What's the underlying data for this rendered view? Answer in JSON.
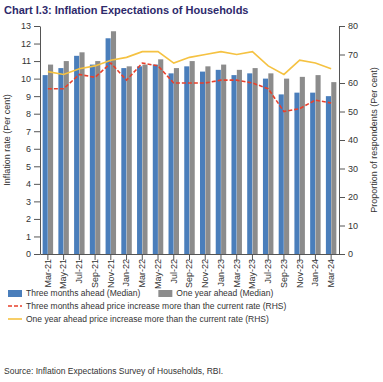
{
  "chart_data": {
    "type": "bar",
    "title": "Chart I.3: Inflation Expectations of Households",
    "source": "Source: Inflation Expectations Survey of Households, RBI.",
    "y_label": "Inflation rate (Per cent)",
    "y2_label": "Proportion of respondents (Per cent)",
    "categories": [
      "Mar-21",
      "May-21",
      "Jul-21",
      "Sep-21",
      "Nov-21",
      "Jan-22",
      "Mar-22",
      "May-22",
      "Jul-22",
      "Sep-22",
      "Nov-22",
      "Jan-23",
      "Mar-23",
      "May-23",
      "Jul-23",
      "Sep-23",
      "Nov-23",
      "Jan-24",
      "Mar-24"
    ],
    "series": [
      {
        "name": "Three months ahead (Median)",
        "type": "bar",
        "color": "#4a7ebb",
        "values": [
          10.2,
          10.6,
          11.3,
          10.8,
          12.3,
          10.6,
          10.7,
          10.8,
          10.3,
          10.7,
          10.4,
          10.5,
          10.2,
          10.3,
          10.0,
          9.1,
          9.2,
          9.2,
          9.0
        ]
      },
      {
        "name": "One year ahead (Median)",
        "type": "bar",
        "color": "#8c8c8c",
        "values": [
          10.8,
          11.0,
          11.5,
          11.0,
          12.7,
          10.7,
          10.8,
          11.1,
          10.6,
          11.0,
          10.7,
          10.8,
          10.5,
          10.6,
          10.3,
          10.0,
          10.1,
          10.2,
          9.8
        ]
      },
      {
        "name": "Three months ahead price increase more than the current rate (RHS)",
        "type": "line",
        "axis": "y2",
        "color": "#e8402b",
        "line_style": "dashed",
        "values": [
          58,
          58,
          63,
          62,
          67,
          61,
          67,
          66,
          60,
          60,
          60,
          61,
          61,
          60,
          58,
          50,
          51,
          54,
          53
        ]
      },
      {
        "name": "One year ahead price increase more than the current rate (RHS)",
        "type": "line",
        "axis": "y2",
        "color": "#f5c242",
        "line_style": "solid",
        "values": [
          64,
          63,
          65,
          66,
          68,
          69,
          71,
          71,
          67,
          69,
          70,
          71,
          70,
          71,
          66,
          63,
          68,
          67,
          65
        ]
      }
    ],
    "ylim": [
      0,
      13
    ],
    "yticks": [
      0,
      1,
      2,
      3,
      4,
      5,
      6,
      7,
      8,
      9,
      10,
      11,
      12,
      13
    ],
    "y2lim": [
      0,
      80
    ],
    "y2ticks": [
      0,
      10,
      20,
      30,
      40,
      50,
      60,
      70,
      80
    ],
    "grid": false
  }
}
